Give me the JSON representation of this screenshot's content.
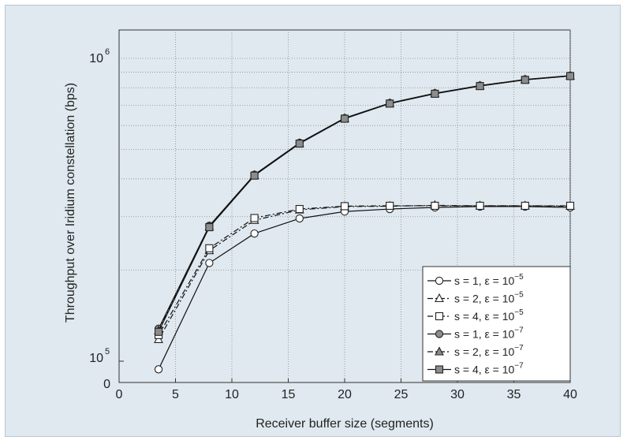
{
  "chart_data": {
    "type": "line",
    "xlabel": "Receiver buffer size (segments)",
    "ylabel": "Throughput over Iridium constellation (bps)",
    "x_ticks": [
      "0",
      "5",
      "10",
      "15",
      "20",
      "25",
      "30",
      "35",
      "40"
    ],
    "y_tick_labels": {
      "zero": "0",
      "tenfive": {
        "base": "10",
        "exp": "5"
      },
      "tensix": {
        "base": "10",
        "exp": "6"
      }
    },
    "xlim": [
      0,
      40
    ],
    "y_scale": "log",
    "ylim": [
      88000,
      1150000
    ],
    "grid": true,
    "legend_placement": "bottom-right",
    "x": [
      3.5,
      8,
      12,
      16,
      20,
      24,
      28,
      32,
      36,
      40
    ],
    "series": [
      {
        "name": "s = 1, ε = 10",
        "exp": "−5",
        "marker": "circle",
        "fill": "open",
        "line": "solid",
        "values": [
          94000,
          211000,
          264000,
          296000,
          312000,
          318000,
          322000,
          324000,
          324000,
          322000
        ]
      },
      {
        "name": "s = 2, ε = 10",
        "exp": "−5",
        "marker": "triangle",
        "fill": "open",
        "line": "dashdot",
        "values": [
          118000,
          232000,
          292000,
          316000,
          324000,
          325000,
          327000,
          326000,
          326000,
          325000
        ]
      },
      {
        "name": "s = 4, ε = 10",
        "exp": "−5",
        "marker": "square",
        "fill": "open",
        "line": "dashdot",
        "values": [
          122000,
          236000,
          297000,
          318000,
          325000,
          326000,
          326000,
          326000,
          326000,
          326000
        ]
      },
      {
        "name": "s = 1, ε = 10",
        "exp": "−7",
        "marker": "circle",
        "fill": "gray",
        "line": "solid",
        "values": [
          128000,
          280000,
          413000,
          526000,
          635000,
          712000,
          767000,
          813000,
          852000,
          877000
        ]
      },
      {
        "name": "s = 2, ε = 10",
        "exp": "−7",
        "marker": "triangle",
        "fill": "gray",
        "line": "dashdot",
        "values": [
          126000,
          278000,
          411000,
          524000,
          633000,
          710000,
          765000,
          811000,
          850000,
          875000
        ]
      },
      {
        "name": "s = 4, ε = 10",
        "exp": "−7",
        "marker": "square",
        "fill": "gray",
        "line": "solid",
        "values": [
          125000,
          277000,
          410000,
          523000,
          632000,
          709000,
          764000,
          810000,
          849000,
          874000
        ]
      }
    ]
  }
}
